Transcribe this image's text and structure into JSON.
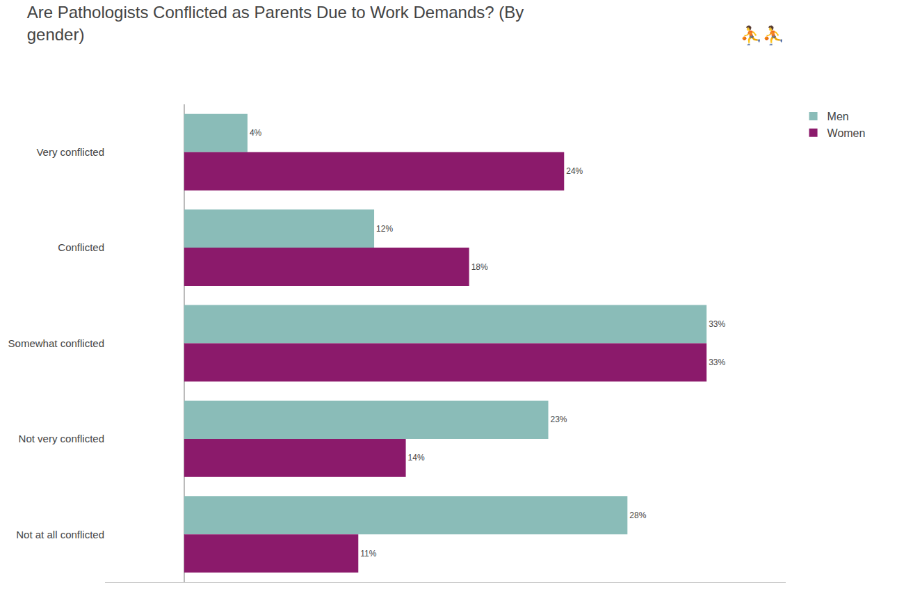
{
  "chart_data": {
    "type": "bar",
    "orientation": "horizontal",
    "title": "Are Pathologists Conflicted as Parents Due to Work Demands? (By\ngender)",
    "categories": [
      "Very conflicted",
      "Conflicted",
      "Somewhat conflicted",
      "Not very conflicted",
      "Not at all conflicted"
    ],
    "series": [
      {
        "name": "Men",
        "color": "#8abcb8",
        "values": [
          4,
          12,
          33,
          23,
          28
        ],
        "value_labels": [
          "4%",
          "12%",
          "33%",
          "23%",
          "28%"
        ]
      },
      {
        "name": "Women",
        "color": "#8b1a6b",
        "values": [
          24,
          18,
          33,
          14,
          11
        ],
        "value_labels": [
          "24%",
          "18%",
          "33%",
          "14%",
          "11%"
        ]
      }
    ],
    "xlim": [
      -5,
      38
    ],
    "xticks": [],
    "grid": false,
    "legend": "upper right",
    "data_labels": true,
    "tick_labels": "y",
    "annotations": [
      "⛹⛹"
    ]
  }
}
